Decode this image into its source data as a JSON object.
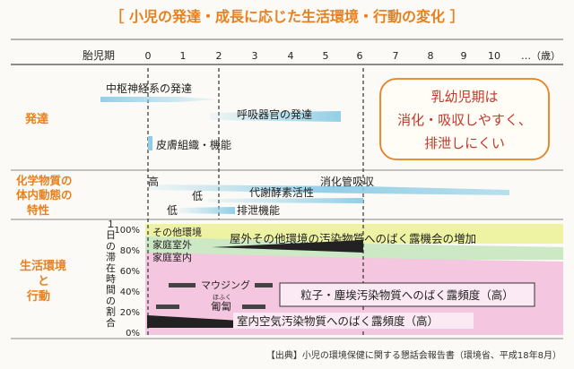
{
  "title": "［ 小児の発達・成長に応じた生活環境・行動の変化 ］",
  "axis": {
    "fetal_label": "胎児期",
    "ticks": [
      "0",
      "1",
      "2",
      "3",
      "4",
      "5",
      "6",
      "7",
      "8",
      "9",
      "10",
      "…（歳）"
    ]
  },
  "sections": {
    "development": {
      "label": "発達",
      "items": [
        "中枢神経系の発達",
        "呼吸器官の発達",
        "皮膚組織・機能"
      ]
    },
    "chemical": {
      "label_line1": "化学物質の",
      "label_line2": "体内動態の",
      "label_line3": "特性",
      "items": [
        "高",
        "消化管吸収",
        "低",
        "代謝酵素活性",
        "低",
        "排泄機能"
      ]
    },
    "environment": {
      "label_line1": "生活環境",
      "label_line2": "と",
      "label_line3": "行動",
      "ylabel": "１日の滞在時間の割合",
      "yticks": [
        "100%",
        "80%",
        "60%",
        "40%",
        "20%",
        "0%"
      ],
      "zone_labels": [
        "その他環境",
        "家庭室外",
        "家庭室内"
      ],
      "items": [
        "屋外その他環境の汚染物質へのばく露機会の増加",
        "マウジング",
        "ほふく",
        "匍匐",
        "粒子・塵埃汚染物質へのばく露頻度（高）",
        "室内空気汚染物質へのばく露頻度（高）"
      ]
    }
  },
  "note": {
    "line1": "乳幼児期は",
    "line2": "消化・吸収しやすく、",
    "line3": "排泄しにくい"
  },
  "source": "【出典】小児の環境保健に関する懇話会報告書（環境省、平成18年8月）",
  "colors": {
    "orange": "#e8801e",
    "blue": "#8ecde6",
    "yellow": "#eef3a3",
    "green": "#cde8c4",
    "pink": "#f4c6e0",
    "dark": "#222222"
  }
}
